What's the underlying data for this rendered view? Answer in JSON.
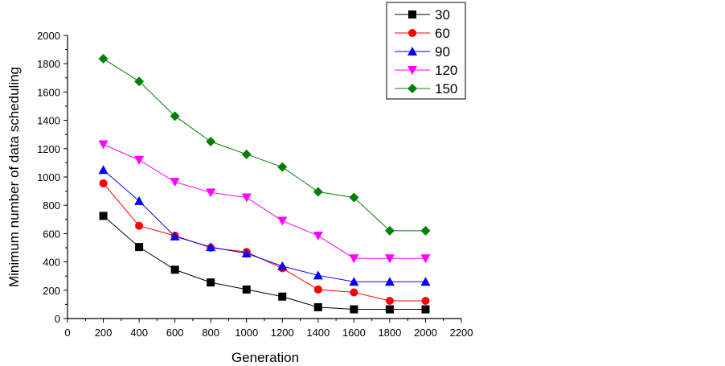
{
  "chart_data": {
    "type": "line",
    "xlabel": "Generation",
    "ylabel": "Minimum number of data scheduling",
    "xlim": [
      0,
      2200
    ],
    "ylim": [
      0,
      2000
    ],
    "x_ticks": [
      0,
      200,
      400,
      600,
      800,
      1000,
      1200,
      1400,
      1600,
      1800,
      2000,
      2200
    ],
    "y_ticks": [
      0,
      200,
      400,
      600,
      800,
      1000,
      1200,
      1400,
      1600,
      1800,
      2000
    ],
    "grid": false,
    "legend_position": "top-right",
    "x": [
      200,
      400,
      600,
      800,
      1000,
      1200,
      1400,
      1600,
      1800,
      2000
    ],
    "series": [
      {
        "name": "30",
        "color": "#000000",
        "marker": "square",
        "values": [
          725,
          505,
          345,
          255,
          205,
          155,
          80,
          65,
          65,
          65
        ]
      },
      {
        "name": "60",
        "color": "#ff0000",
        "marker": "circle",
        "values": [
          955,
          655,
          585,
          500,
          470,
          355,
          205,
          185,
          125,
          125
        ]
      },
      {
        "name": "90",
        "color": "#0000ff",
        "marker": "triangle-up",
        "values": [
          1050,
          830,
          580,
          505,
          460,
          370,
          305,
          260,
          260,
          260
        ]
      },
      {
        "name": "120",
        "color": "#ff00ff",
        "marker": "triangle-down",
        "values": [
          1230,
          1120,
          965,
          890,
          855,
          690,
          585,
          425,
          425,
          425
        ]
      },
      {
        "name": "150",
        "color": "#008000",
        "marker": "diamond",
        "values": [
          1835,
          1675,
          1430,
          1250,
          1160,
          1070,
          895,
          855,
          620,
          620
        ]
      }
    ]
  }
}
